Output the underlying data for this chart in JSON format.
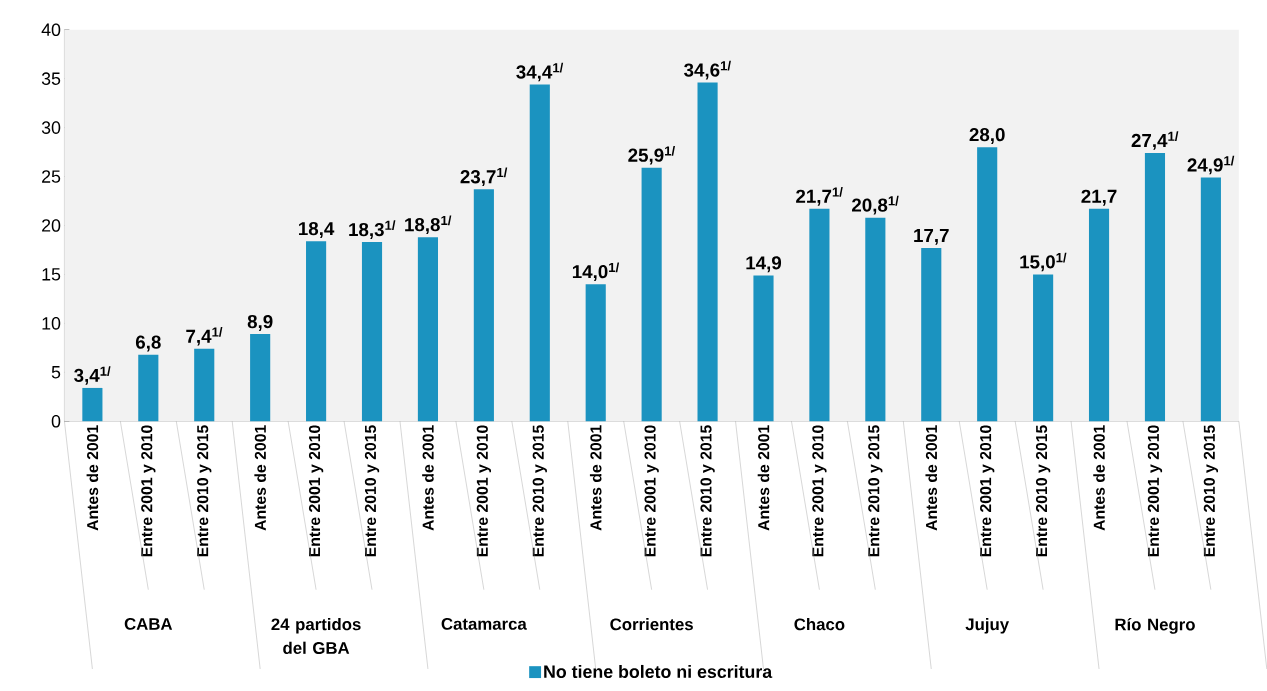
{
  "chart_data": {
    "type": "bar",
    "categories": [
      "Antes de 2001",
      "Entre 2001 y 2010",
      "Entre 2010 y 2015",
      "Antes de 2001",
      "Entre 2001 y 2010",
      "Entre 2010 y 2015",
      "Antes de 2001",
      "Entre 2001 y 2010",
      "Entre 2010 y 2015",
      "Antes de 2001",
      "Entre 2001 y 2010",
      "Entre 2010 y 2015",
      "Antes de 2001",
      "Entre 2001 y 2010",
      "Entre 2010 y 2015",
      "Antes de 2001",
      "Entre 2001 y 2010",
      "Entre 2010 y 2015",
      "Antes de 2001",
      "Entre 2001 y 2010",
      "Entre 2010 y 2015"
    ],
    "series": [
      {
        "name": "No tiene boleto ni escritura",
        "color": "#1b93c0",
        "values": [
          3.4,
          6.8,
          7.4,
          8.9,
          18.4,
          18.3,
          18.8,
          23.7,
          34.4,
          14.0,
          25.9,
          34.6,
          14.9,
          21.7,
          20.8,
          17.7,
          28.0,
          15.0,
          21.7,
          27.4,
          24.9
        ],
        "value_labels": [
          "3,4$^{1/}$",
          "6,8",
          "7,4$^{1/}$",
          "8,9",
          "18,4",
          "18,3$^{1/}$",
          "18,8$^{1/}$",
          "23,7$^{1/}$",
          "34,4$^{1/}$",
          "14,0$^{1/}$",
          "25,9$^{1/}$",
          "34,6$^{1/}$",
          "14,9",
          "21,7$^{1/}$",
          "20,8$^{1/}$",
          "17,7",
          "28,0",
          "15,0$^{1/}$",
          "21,7",
          "27,4$^{1/}$",
          "24,9$^{1/}$"
        ]
      }
    ],
    "annotations": [
      "CABA",
      "24 partidos del GBA",
      "Catamarca",
      "Corrientes",
      "Chaco",
      "Jujuy",
      "Río Negro"
    ],
    "ylim": [
      0,
      40
    ],
    "yticks": [
      0,
      5,
      10,
      15,
      20,
      25,
      30,
      35,
      40
    ],
    "legend": "bottom"
  }
}
